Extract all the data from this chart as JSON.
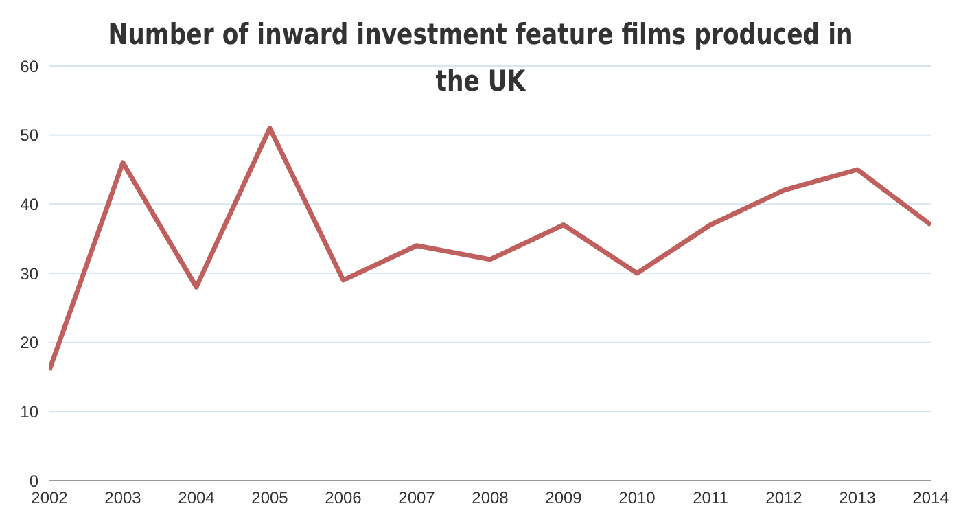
{
  "chart_data": {
    "type": "line",
    "title": "Number of inward investment feature films produced in the UK",
    "x": [
      2002,
      2003,
      2004,
      2005,
      2006,
      2007,
      2008,
      2009,
      2010,
      2011,
      2012,
      2013,
      2014
    ],
    "series": [
      {
        "color": "#c0605e",
        "values": [
          16,
          46,
          28,
          51,
          29,
          34,
          32,
          37,
          30,
          37,
          42,
          45,
          37
        ]
      }
    ],
    "xlim": [
      2002,
      2014
    ],
    "xticks": [
      2002,
      2003,
      2004,
      2005,
      2006,
      2007,
      2008,
      2009,
      2010,
      2011,
      2012,
      2013,
      2014
    ],
    "ylim": [
      0,
      60
    ],
    "yticks": [
      0,
      10,
      20,
      30,
      40,
      50,
      60
    ],
    "grid": "y",
    "marker": "none",
    "line_style": "solid",
    "legend": false
  }
}
